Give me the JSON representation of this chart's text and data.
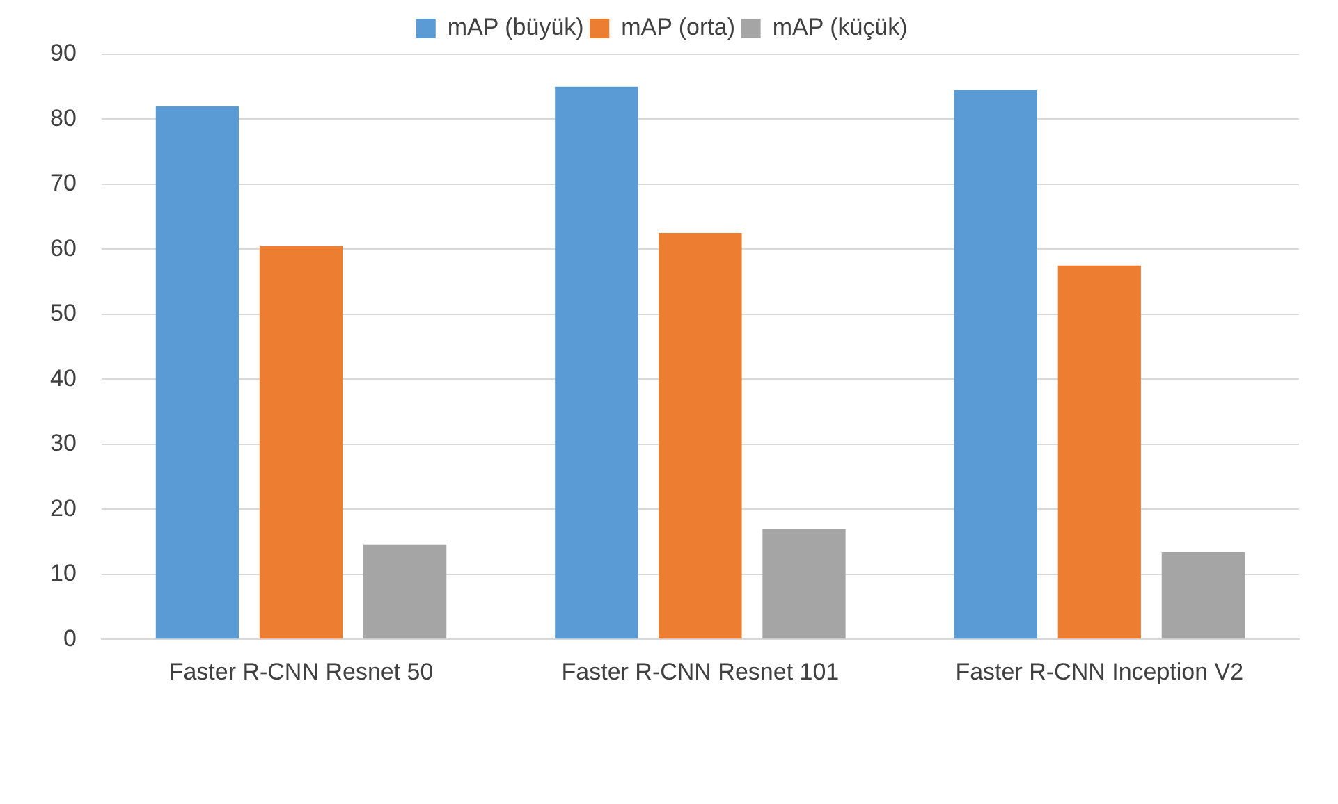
{
  "chart_data": {
    "type": "bar",
    "categories": [
      "Faster R-CNN Resnet 50",
      "Faster R-CNN Resnet 101",
      "Faster R-CNN Inception V2"
    ],
    "series": [
      {
        "name": "mAP (büyük)",
        "color": "#5b9bd5",
        "values": [
          82,
          85,
          84.5
        ]
      },
      {
        "name": "mAP (orta)",
        "color": "#ed7d31",
        "values": [
          60.5,
          62.5,
          57.5
        ]
      },
      {
        "name": "mAP (küçük)",
        "color": "#a5a5a5",
        "values": [
          14.6,
          17,
          13.4
        ]
      }
    ],
    "ylim": [
      0,
      90
    ],
    "yticks": [
      0,
      10,
      20,
      30,
      40,
      50,
      60,
      70,
      80,
      90
    ],
    "grid": "y",
    "legend": "top"
  }
}
